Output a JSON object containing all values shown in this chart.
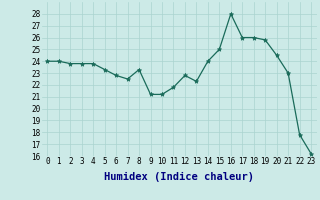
{
  "x": [
    0,
    1,
    2,
    3,
    4,
    5,
    6,
    7,
    8,
    9,
    10,
    11,
    12,
    13,
    14,
    15,
    16,
    17,
    18,
    19,
    20,
    21,
    22,
    23
  ],
  "y": [
    24,
    24,
    23.8,
    23.8,
    23.8,
    23.3,
    22.8,
    22.5,
    23.3,
    21.2,
    21.2,
    21.8,
    22.8,
    22.3,
    24,
    25,
    28,
    26,
    26,
    25.8,
    24.5,
    23,
    17.8,
    16.2
  ],
  "xlabel": "Humidex (Indice chaleur)",
  "ylim": [
    16,
    29
  ],
  "xlim": [
    -0.5,
    23.5
  ],
  "yticks": [
    16,
    17,
    18,
    19,
    20,
    21,
    22,
    23,
    24,
    25,
    26,
    27,
    28
  ],
  "xticks": [
    0,
    1,
    2,
    3,
    4,
    5,
    6,
    7,
    8,
    9,
    10,
    11,
    12,
    13,
    14,
    15,
    16,
    17,
    18,
    19,
    20,
    21,
    22,
    23
  ],
  "line_color": "#1a6b5a",
  "marker_color": "#1a6b5a",
  "bg_color": "#cceae7",
  "grid_color": "#aad4d0",
  "tick_label_fontsize": 5.5,
  "xlabel_fontsize": 7.5,
  "xlabel_color": "#000080",
  "tick_color": "#000000"
}
